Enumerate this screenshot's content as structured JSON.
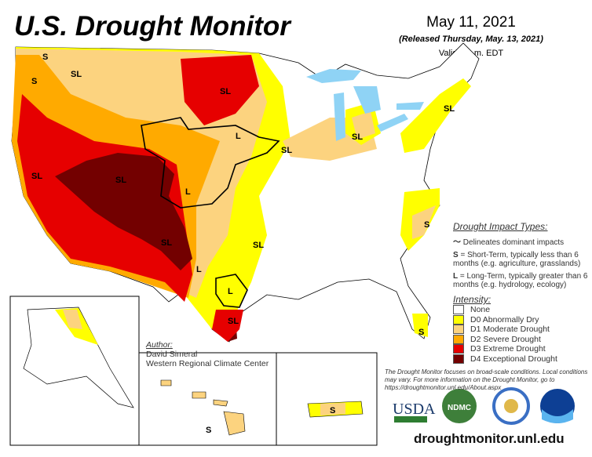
{
  "header": {
    "title": "U.S. Drought Monitor",
    "date": "May 11, 2021",
    "released": "(Released Thursday, May. 13, 2021)",
    "valid": "Valid 8 a.m. EDT"
  },
  "legend": {
    "impact_heading": "Drought Impact Types:",
    "delineates": "Delineates dominant impacts",
    "short_term_key": "S",
    "short_term": "= Short-Term, typically less than 6 months (e.g. agriculture, grasslands)",
    "long_term_key": "L",
    "long_term": "= Long-Term, typically greater than 6 months (e.g. hydrology, ecology)",
    "intensity_heading": "Intensity:",
    "items": [
      {
        "label": "None",
        "color": "#ffffff"
      },
      {
        "label": "D0 Abnormally Dry",
        "color": "#ffff00"
      },
      {
        "label": "D1 Moderate Drought",
        "color": "#fcd37f"
      },
      {
        "label": "D2 Severe Drought",
        "color": "#ffaa00"
      },
      {
        "label": "D3 Extreme Drought",
        "color": "#e60000"
      },
      {
        "label": "D4 Exceptional Drought",
        "color": "#730000"
      }
    ]
  },
  "author": {
    "heading": "Author:",
    "name": "David Simeral",
    "org": "Western Regional Climate Center"
  },
  "note": "The Drought Monitor focuses on broad-scale conditions. Local conditions may vary. For more information on the Drought Monitor, go to https://droughtmonitor.unl.edu/About.aspx",
  "logos": [
    "USDA",
    "NDMC",
    "Department of Commerce",
    "NOAA"
  ],
  "url": "droughtmonitor.unl.edu",
  "map_labels": [
    "S",
    "SL",
    "SL",
    "SL",
    "SL",
    "L",
    "SL",
    "SL",
    "SL",
    "L",
    "S",
    "SL",
    "SL",
    "L",
    "L",
    "SL",
    "S",
    "S",
    "S"
  ]
}
